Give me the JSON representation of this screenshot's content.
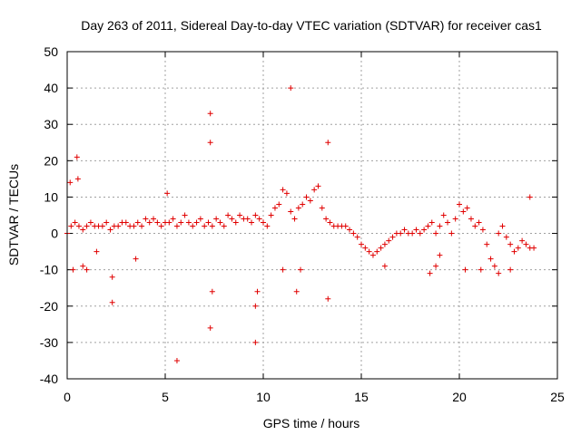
{
  "chart_data": {
    "type": "scatter",
    "title": "Day 263 of 2011, Sidereal Day-to-day VTEC variation (SDTVAR) for receiver cas1",
    "xlabel": "GPS time / hours",
    "ylabel": "SDTVAR / TECUs",
    "xlim": [
      0,
      25
    ],
    "ylim": [
      -40,
      50
    ],
    "xticks": [
      "0",
      "5",
      "10",
      "15",
      "20",
      "25"
    ],
    "yticks": [
      "50",
      "40",
      "30",
      "20",
      "10",
      "0",
      "-10",
      "-20",
      "-30",
      "-40"
    ],
    "grid": true,
    "marker": "+",
    "colors": {
      "series": "#e00000",
      "grid": "#a0a0a0",
      "axis": "#000000"
    },
    "series": [
      {
        "name": "SDTVAR",
        "x": [
          0.0,
          0.2,
          0.4,
          0.6,
          0.8,
          1.0,
          1.2,
          1.4,
          1.6,
          1.8,
          2.0,
          2.2,
          2.4,
          2.6,
          2.8,
          3.0,
          3.2,
          3.4,
          3.6,
          3.8,
          4.0,
          4.2,
          4.4,
          4.6,
          4.8,
          5.0,
          5.2,
          5.4,
          5.6,
          5.8,
          6.0,
          6.2,
          6.4,
          6.6,
          6.8,
          7.0,
          7.2,
          7.4,
          7.6,
          7.8,
          8.0,
          8.2,
          8.4,
          8.6,
          8.8,
          9.0,
          9.2,
          9.4,
          9.6,
          9.8,
          10.0,
          10.2,
          10.4,
          10.6,
          10.8,
          11.0,
          11.2,
          11.4,
          11.6,
          11.8,
          12.0,
          12.2,
          12.4,
          12.6,
          12.8,
          13.0,
          13.2,
          13.4,
          13.6,
          13.8,
          14.0,
          14.2,
          14.4,
          14.6,
          14.8,
          15.0,
          15.2,
          15.4,
          15.6,
          15.8,
          16.0,
          16.2,
          16.4,
          16.6,
          16.8,
          17.0,
          17.2,
          17.4,
          17.6,
          17.8,
          18.0,
          18.2,
          18.4,
          18.6,
          18.8,
          19.0,
          19.2,
          19.4,
          19.6,
          19.8,
          20.0,
          20.2,
          20.4,
          20.6,
          20.8,
          21.0,
          21.2,
          21.4,
          21.6,
          21.8,
          22.0,
          22.2,
          22.4,
          22.6,
          22.8,
          23.0,
          23.2,
          23.4,
          23.6,
          23.8,
          0.3,
          0.5,
          0.55,
          0.15,
          0.8,
          1.0,
          1.5,
          2.3,
          2.3,
          3.5,
          5.1,
          5.6,
          7.3,
          7.3,
          7.3,
          7.4,
          9.6,
          9.6,
          9.7,
          11.0,
          11.4,
          11.7,
          11.9,
          13.3,
          13.3,
          16.2,
          18.5,
          18.8,
          19.0,
          21.1,
          23.6,
          22.0,
          22.6,
          20.3
        ],
        "y": [
          0,
          2,
          3,
          2,
          1,
          2,
          3,
          2,
          2,
          2,
          3,
          1,
          2,
          2,
          3,
          3,
          2,
          2,
          3,
          2,
          4,
          3,
          4,
          3,
          2,
          3,
          3,
          4,
          2,
          3,
          5,
          3,
          2,
          3,
          4,
          2,
          3,
          2,
          4,
          3,
          2,
          5,
          4,
          3,
          5,
          4,
          4,
          3,
          5,
          4,
          3,
          2,
          5,
          7,
          8,
          12,
          11,
          6,
          4,
          7,
          8,
          10,
          9,
          12,
          13,
          7,
          4,
          3,
          2,
          2,
          2,
          2,
          1,
          0,
          -1,
          -3,
          -4,
          -5,
          -6,
          -5,
          -4,
          -3,
          -2,
          -1,
          0,
          0,
          1,
          0,
          0,
          1,
          0,
          1,
          2,
          3,
          0,
          2,
          5,
          3,
          0,
          4,
          8,
          6,
          7,
          4,
          2,
          3,
          1,
          -3,
          -7,
          -9,
          0,
          2,
          -1,
          -3,
          -5,
          -4,
          -2,
          -3,
          -4,
          -4,
          -10,
          21,
          15,
          14,
          -9,
          -10,
          -5,
          -19,
          -12,
          -7,
          11,
          -35,
          33,
          25,
          -26,
          -16,
          -30,
          -20,
          -16,
          -10,
          40,
          -16,
          -10,
          25,
          -18,
          -9,
          -11,
          -9,
          -6,
          -10,
          10,
          -11,
          -10,
          -10
        ]
      }
    ]
  }
}
